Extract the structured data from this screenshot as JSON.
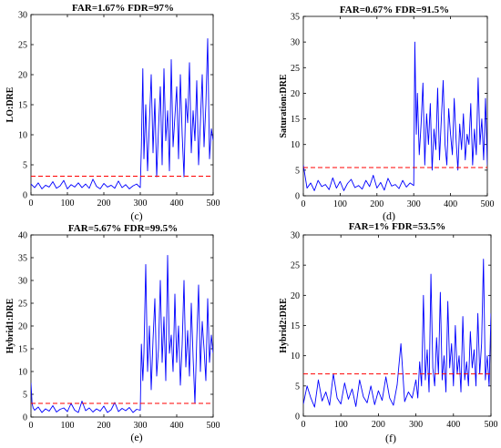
{
  "chart_data": [
    {
      "type": "line",
      "panel": "(c)",
      "stats": "FAR=1.67%    FDR=97%",
      "ylabel": "LO:DRE",
      "xlim": [
        0,
        500
      ],
      "ylim": [
        0,
        30
      ],
      "xticks": [
        0,
        100,
        200,
        300,
        400,
        500
      ],
      "yticks": [
        0,
        5,
        10,
        15,
        20,
        25,
        30
      ],
      "threshold": 3.1,
      "series": [
        {
          "color": "#0000ff",
          "x": [
            0,
            10,
            20,
            30,
            40,
            50,
            60,
            70,
            80,
            90,
            100,
            110,
            120,
            130,
            140,
            150,
            160,
            170,
            180,
            190,
            200,
            210,
            220,
            230,
            240,
            250,
            260,
            270,
            280,
            290,
            300,
            303,
            307,
            310,
            315,
            320,
            325,
            330,
            335,
            340,
            345,
            350,
            355,
            360,
            365,
            370,
            375,
            380,
            385,
            390,
            395,
            400,
            405,
            410,
            415,
            420,
            425,
            430,
            435,
            440,
            445,
            450,
            455,
            460,
            465,
            470,
            475,
            480,
            485,
            490,
            495,
            500
          ],
          "y": [
            1.8,
            1.2,
            2.0,
            1.0,
            1.6,
            1.3,
            2.2,
            1.1,
            1.5,
            2.4,
            1.0,
            1.7,
            1.3,
            2.0,
            1.2,
            1.8,
            1.1,
            2.6,
            1.4,
            1.0,
            1.9,
            1.3,
            1.6,
            1.1,
            2.3,
            1.2,
            1.7,
            1.0,
            1.5,
            1.8,
            1.2,
            8.0,
            21.0,
            6.0,
            15.0,
            4.0,
            12.0,
            20.0,
            7.0,
            16.0,
            3.0,
            11.0,
            18.0,
            5.0,
            21.0,
            9.0,
            14.0,
            4.0,
            22.5,
            8.0,
            13.0,
            18.0,
            6.0,
            20.0,
            10.0,
            3.0,
            16.0,
            12.0,
            22.0,
            7.0,
            14.0,
            9.0,
            19.0,
            5.0,
            12.0,
            20.0,
            8.0,
            15.0,
            26.0,
            6.0,
            11.0,
            9.0
          ]
        }
      ]
    },
    {
      "type": "line",
      "panel": "(d)",
      "stats": "FAR=0.67%    FDR=91.5%",
      "ylabel": "Saturation:DRE",
      "xlim": [
        0,
        500
      ],
      "ylim": [
        0,
        35
      ],
      "xticks": [
        0,
        100,
        200,
        300,
        400,
        500
      ],
      "yticks": [
        0,
        5,
        10,
        15,
        20,
        25,
        30,
        35
      ],
      "threshold": 5.5,
      "series": [
        {
          "color": "#0000ff",
          "x": [
            0,
            10,
            20,
            30,
            40,
            50,
            60,
            70,
            80,
            90,
            100,
            110,
            120,
            130,
            140,
            150,
            160,
            170,
            180,
            190,
            200,
            210,
            220,
            230,
            240,
            250,
            260,
            270,
            280,
            290,
            300,
            303,
            307,
            310,
            315,
            320,
            325,
            330,
            335,
            340,
            345,
            350,
            355,
            360,
            365,
            370,
            375,
            380,
            385,
            390,
            395,
            400,
            405,
            410,
            415,
            420,
            425,
            430,
            435,
            440,
            445,
            450,
            455,
            460,
            465,
            470,
            475,
            480,
            485,
            490,
            495,
            500
          ],
          "y": [
            6.0,
            1.5,
            2.5,
            1.0,
            3.0,
            1.8,
            2.2,
            1.2,
            3.5,
            1.5,
            2.8,
            1.0,
            2.4,
            3.2,
            1.6,
            2.0,
            1.3,
            3.0,
            1.8,
            4.0,
            1.5,
            2.6,
            1.1,
            3.4,
            1.9,
            2.2,
            1.4,
            3.0,
            1.7,
            2.5,
            2.0,
            30.0,
            12.0,
            20.0,
            8.0,
            14.0,
            22.0,
            6.0,
            16.0,
            10.0,
            18.0,
            5.0,
            13.0,
            9.0,
            21.0,
            7.0,
            15.0,
            22.5,
            10.0,
            6.0,
            17.0,
            12.0,
            8.0,
            19.0,
            11.0,
            5.0,
            14.0,
            9.0,
            16.0,
            7.0,
            12.0,
            10.0,
            18.0,
            6.0,
            13.0,
            8.0,
            23.0,
            10.0,
            15.0,
            7.0,
            19.0,
            6.0
          ]
        }
      ]
    },
    {
      "type": "line",
      "panel": "(e)",
      "stats": "FAR=5.67%    FDR=99.5%",
      "ylabel": "Hybrid1:DRE",
      "xlim": [
        0,
        500
      ],
      "ylim": [
        0,
        40
      ],
      "xticks": [
        0,
        100,
        200,
        300,
        400,
        500
      ],
      "yticks": [
        0,
        5,
        10,
        15,
        20,
        25,
        30,
        35,
        40
      ],
      "threshold": 3.0,
      "series": [
        {
          "color": "#0000ff",
          "x": [
            0,
            3,
            6,
            10,
            20,
            30,
            40,
            50,
            60,
            70,
            80,
            90,
            100,
            110,
            120,
            130,
            140,
            150,
            160,
            170,
            180,
            190,
            200,
            210,
            220,
            230,
            240,
            250,
            260,
            270,
            280,
            290,
            300,
            303,
            307,
            310,
            315,
            320,
            325,
            330,
            335,
            340,
            345,
            350,
            355,
            360,
            365,
            370,
            375,
            380,
            385,
            390,
            395,
            400,
            405,
            410,
            415,
            420,
            425,
            430,
            435,
            440,
            445,
            450,
            455,
            460,
            465,
            470,
            475,
            480,
            485,
            490,
            495,
            500
          ],
          "y": [
            7.5,
            3.0,
            2.0,
            1.5,
            2.2,
            1.0,
            1.8,
            1.3,
            2.5,
            1.1,
            1.7,
            2.0,
            1.2,
            3.0,
            1.5,
            1.0,
            3.5,
            1.4,
            2.0,
            1.1,
            1.8,
            1.3,
            2.4,
            1.0,
            1.6,
            3.2,
            1.2,
            1.9,
            1.4,
            2.1,
            1.0,
            1.7,
            1.5,
            16.0,
            8.0,
            14.0,
            33.5,
            10.0,
            20.0,
            6.0,
            17.0,
            26.0,
            9.0,
            15.0,
            30.0,
            12.0,
            22.0,
            8.0,
            35.5,
            14.0,
            18.0,
            10.0,
            27.0,
            12.0,
            20.0,
            7.0,
            16.0,
            30.0,
            11.0,
            19.0,
            9.0,
            25.0,
            13.0,
            3.0,
            17.0,
            29.0,
            10.0,
            21.0,
            15.0,
            8.0,
            26.0,
            12.0,
            18.0,
            14.0
          ]
        }
      ]
    },
    {
      "type": "line",
      "panel": "(f)",
      "stats": "FAR=1%    FDR=53.5%",
      "ylabel": "Hybrid2:DRE",
      "xlim": [
        0,
        500
      ],
      "ylim": [
        0,
        30
      ],
      "xticks": [
        0,
        100,
        200,
        300,
        400,
        500
      ],
      "yticks": [
        0,
        5,
        10,
        15,
        20,
        25,
        30
      ],
      "threshold": 7.0,
      "series": [
        {
          "color": "#0000ff",
          "x": [
            0,
            10,
            20,
            30,
            40,
            50,
            60,
            70,
            80,
            90,
            100,
            110,
            120,
            130,
            140,
            150,
            160,
            170,
            180,
            190,
            200,
            210,
            220,
            230,
            240,
            250,
            260,
            270,
            280,
            290,
            300,
            305,
            310,
            315,
            320,
            325,
            330,
            335,
            340,
            345,
            350,
            355,
            360,
            365,
            370,
            375,
            380,
            385,
            390,
            395,
            400,
            405,
            410,
            415,
            420,
            425,
            430,
            435,
            440,
            445,
            450,
            455,
            460,
            465,
            470,
            475,
            480,
            485,
            490,
            495,
            500
          ],
          "y": [
            2.0,
            5.0,
            3.0,
            1.5,
            6.0,
            2.5,
            4.0,
            1.8,
            7.0,
            3.0,
            2.0,
            5.5,
            2.8,
            4.5,
            1.6,
            6.0,
            3.2,
            2.2,
            5.0,
            1.9,
            4.2,
            2.6,
            6.5,
            3.0,
            1.8,
            5.2,
            12.0,
            2.4,
            4.0,
            3.0,
            6.0,
            3.0,
            9.0,
            5.0,
            20.0,
            6.0,
            11.0,
            4.0,
            23.5,
            8.0,
            5.0,
            13.0,
            7.0,
            20.5,
            6.0,
            10.0,
            4.0,
            19.0,
            8.0,
            12.0,
            5.0,
            15.0,
            7.0,
            10.0,
            4.0,
            16.5,
            6.0,
            9.0,
            5.0,
            14.0,
            8.0,
            11.0,
            5.0,
            17.0,
            7.0,
            12.0,
            26.0,
            6.0,
            10.0,
            5.0,
            17.0
          ]
        }
      ]
    }
  ]
}
